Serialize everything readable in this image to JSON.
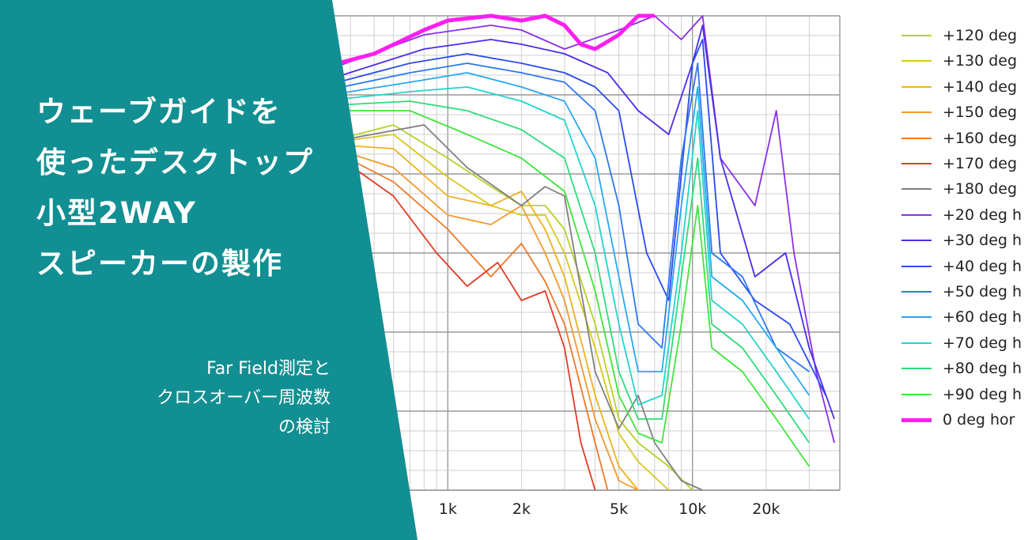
{
  "banner": {
    "bg_color": "#128f92",
    "title_lines": [
      "ウェーブガイドを",
      "使ったデスクトップ",
      "小型2WAY",
      "スピーカーの製作"
    ],
    "subtitle_lines": [
      "Far Field測定と",
      "クロスオーバー周波数",
      "の検討"
    ]
  },
  "chart_data": {
    "type": "line",
    "xscale": "log",
    "xlim": [
      250,
      40000
    ],
    "ylim": [
      0,
      1
    ],
    "x_tick_labels": [
      {
        "label": "1k",
        "value": 1000
      },
      {
        "label": "2k",
        "value": 2000
      },
      {
        "label": "5k",
        "value": 5000
      },
      {
        "label": "10k",
        "value": 10000
      },
      {
        "label": "20k",
        "value": 20000
      }
    ],
    "grid": true,
    "legend_position": "right",
    "series": [
      {
        "name": "+120 deg",
        "color": "#b6d22a",
        "values": [
          [
            300,
            0.73
          ],
          [
            600,
            0.77
          ],
          [
            1000,
            0.7
          ],
          [
            1500,
            0.64
          ],
          [
            2000,
            0.6
          ],
          [
            2500,
            0.6
          ],
          [
            3000,
            0.55
          ],
          [
            4000,
            0.35
          ],
          [
            5000,
            0.15
          ],
          [
            6000,
            0.1
          ],
          [
            8000,
            0.05
          ],
          [
            10000,
            0.0
          ]
        ]
      },
      {
        "name": "+130 deg",
        "color": "#d9c81c",
        "values": [
          [
            300,
            0.73
          ],
          [
            600,
            0.75
          ],
          [
            1000,
            0.66
          ],
          [
            1500,
            0.6
          ],
          [
            2000,
            0.58
          ],
          [
            2500,
            0.58
          ],
          [
            3000,
            0.5
          ],
          [
            4000,
            0.3
          ],
          [
            5000,
            0.12
          ],
          [
            6000,
            0.06
          ],
          [
            8000,
            0.0
          ]
        ]
      },
      {
        "name": "+140 deg",
        "color": "#efb21e",
        "values": [
          [
            300,
            0.73
          ],
          [
            600,
            0.72
          ],
          [
            1000,
            0.62
          ],
          [
            1500,
            0.6
          ],
          [
            2000,
            0.63
          ],
          [
            2500,
            0.55
          ],
          [
            3000,
            0.45
          ],
          [
            4000,
            0.2
          ],
          [
            5000,
            0.05
          ],
          [
            6000,
            0.0
          ]
        ]
      },
      {
        "name": "+150 deg",
        "color": "#f29a2e",
        "values": [
          [
            300,
            0.73
          ],
          [
            600,
            0.68
          ],
          [
            1000,
            0.58
          ],
          [
            1500,
            0.56
          ],
          [
            2000,
            0.6
          ],
          [
            2500,
            0.5
          ],
          [
            3000,
            0.4
          ],
          [
            4000,
            0.15
          ],
          [
            5000,
            0.02
          ],
          [
            6000,
            0.0
          ]
        ]
      },
      {
        "name": "+160 deg",
        "color": "#ee7a2a",
        "values": [
          [
            300,
            0.73
          ],
          [
            600,
            0.65
          ],
          [
            1000,
            0.55
          ],
          [
            1500,
            0.45
          ],
          [
            2000,
            0.52
          ],
          [
            2500,
            0.44
          ],
          [
            3000,
            0.35
          ],
          [
            4000,
            0.1
          ],
          [
            4500,
            0.0
          ]
        ]
      },
      {
        "name": "+170 deg",
        "color": "#e23b26",
        "values": [
          [
            300,
            0.73
          ],
          [
            600,
            0.62
          ],
          [
            900,
            0.5
          ],
          [
            1200,
            0.43
          ],
          [
            1600,
            0.48
          ],
          [
            2000,
            0.4
          ],
          [
            2500,
            0.42
          ],
          [
            3000,
            0.3
          ],
          [
            3500,
            0.1
          ],
          [
            4000,
            0.0
          ]
        ]
      },
      {
        "name": "+180 deg",
        "color": "#808080",
        "values": [
          [
            300,
            0.73
          ],
          [
            800,
            0.77
          ],
          [
            1200,
            0.68
          ],
          [
            2000,
            0.6
          ],
          [
            2500,
            0.64
          ],
          [
            3000,
            0.62
          ],
          [
            4000,
            0.25
          ],
          [
            5000,
            0.13
          ],
          [
            6000,
            0.2
          ],
          [
            7000,
            0.1
          ],
          [
            9000,
            0.02
          ],
          [
            11000,
            0.0
          ]
        ]
      },
      {
        "name": "+20 deg h",
        "color": "#8a30e8",
        "values": [
          [
            300,
            0.88
          ],
          [
            800,
            0.96
          ],
          [
            1500,
            0.98
          ],
          [
            2000,
            0.97
          ],
          [
            3000,
            0.93
          ],
          [
            5000,
            0.97
          ],
          [
            7000,
            1.0
          ],
          [
            9000,
            0.95
          ],
          [
            11000,
            1.0
          ],
          [
            13000,
            0.7
          ],
          [
            18000,
            0.6
          ],
          [
            22000,
            0.8
          ],
          [
            26000,
            0.5
          ],
          [
            32000,
            0.25
          ],
          [
            38000,
            0.1
          ]
        ]
      },
      {
        "name": "+30 deg h",
        "color": "#4a2ee8",
        "values": [
          [
            300,
            0.86
          ],
          [
            800,
            0.93
          ],
          [
            1500,
            0.95
          ],
          [
            2000,
            0.94
          ],
          [
            3000,
            0.92
          ],
          [
            4500,
            0.88
          ],
          [
            6000,
            0.8
          ],
          [
            8000,
            0.75
          ],
          [
            10000,
            0.9
          ],
          [
            11000,
            0.98
          ],
          [
            13000,
            0.7
          ],
          [
            18000,
            0.45
          ],
          [
            24000,
            0.5
          ],
          [
            30000,
            0.3
          ],
          [
            38000,
            0.15
          ]
        ]
      },
      {
        "name": "+40 deg h",
        "color": "#2a4af0",
        "values": [
          [
            300,
            0.85
          ],
          [
            700,
            0.9
          ],
          [
            1200,
            0.92
          ],
          [
            2000,
            0.9
          ],
          [
            3000,
            0.88
          ],
          [
            4000,
            0.85
          ],
          [
            5000,
            0.8
          ],
          [
            6500,
            0.5
          ],
          [
            8000,
            0.4
          ],
          [
            10000,
            0.9
          ],
          [
            11000,
            0.95
          ],
          [
            13000,
            0.5
          ],
          [
            18000,
            0.4
          ],
          [
            25000,
            0.35
          ],
          [
            35000,
            0.2
          ]
        ]
      },
      {
        "name": "+50 deg h",
        "color": "#2e78f0",
        "values": [
          [
            300,
            0.84
          ],
          [
            700,
            0.88
          ],
          [
            1200,
            0.9
          ],
          [
            2000,
            0.88
          ],
          [
            3000,
            0.86
          ],
          [
            4000,
            0.8
          ],
          [
            5000,
            0.6
          ],
          [
            6000,
            0.35
          ],
          [
            7500,
            0.3
          ],
          [
            9000,
            0.7
          ],
          [
            10500,
            0.9
          ],
          [
            12000,
            0.5
          ],
          [
            16000,
            0.45
          ],
          [
            22000,
            0.3
          ],
          [
            30000,
            0.25
          ]
        ]
      },
      {
        "name": "+60 deg h",
        "color": "#26a8f0",
        "values": [
          [
            300,
            0.83
          ],
          [
            700,
            0.86
          ],
          [
            1200,
            0.88
          ],
          [
            2000,
            0.85
          ],
          [
            3000,
            0.82
          ],
          [
            4000,
            0.7
          ],
          [
            5000,
            0.45
          ],
          [
            6000,
            0.25
          ],
          [
            7500,
            0.25
          ],
          [
            9000,
            0.6
          ],
          [
            10500,
            0.85
          ],
          [
            12000,
            0.45
          ],
          [
            16000,
            0.4
          ],
          [
            22000,
            0.3
          ],
          [
            30000,
            0.2
          ]
        ]
      },
      {
        "name": "+70 deg h",
        "color": "#22d4cc",
        "values": [
          [
            300,
            0.82
          ],
          [
            700,
            0.84
          ],
          [
            1200,
            0.85
          ],
          [
            2000,
            0.82
          ],
          [
            3000,
            0.78
          ],
          [
            4000,
            0.6
          ],
          [
            5000,
            0.35
          ],
          [
            6000,
            0.18
          ],
          [
            7500,
            0.2
          ],
          [
            9000,
            0.5
          ],
          [
            10500,
            0.8
          ],
          [
            12000,
            0.4
          ],
          [
            16000,
            0.35
          ],
          [
            22000,
            0.25
          ],
          [
            30000,
            0.15
          ]
        ]
      },
      {
        "name": "+80 deg h",
        "color": "#2edc7a",
        "values": [
          [
            300,
            0.81
          ],
          [
            700,
            0.82
          ],
          [
            1200,
            0.8
          ],
          [
            2000,
            0.76
          ],
          [
            3000,
            0.7
          ],
          [
            4000,
            0.5
          ],
          [
            5000,
            0.25
          ],
          [
            6000,
            0.15
          ],
          [
            7500,
            0.15
          ],
          [
            9000,
            0.45
          ],
          [
            10500,
            0.7
          ],
          [
            12000,
            0.35
          ],
          [
            16000,
            0.3
          ],
          [
            22000,
            0.2
          ],
          [
            30000,
            0.1
          ]
        ]
      },
      {
        "name": "+90 deg h",
        "color": "#40e63a",
        "values": [
          [
            300,
            0.8
          ],
          [
            700,
            0.8
          ],
          [
            1200,
            0.75
          ],
          [
            2000,
            0.7
          ],
          [
            3000,
            0.63
          ],
          [
            4000,
            0.42
          ],
          [
            5000,
            0.2
          ],
          [
            6000,
            0.12
          ],
          [
            7500,
            0.1
          ],
          [
            9000,
            0.35
          ],
          [
            10500,
            0.6
          ],
          [
            12000,
            0.3
          ],
          [
            16000,
            0.25
          ],
          [
            22000,
            0.15
          ],
          [
            30000,
            0.05
          ]
        ]
      },
      {
        "name": "0 deg hor",
        "color": "#ff1ef0",
        "values": [
          [
            300,
            0.89
          ],
          [
            500,
            0.92
          ],
          [
            800,
            0.97
          ],
          [
            1000,
            0.99
          ],
          [
            1500,
            1.0
          ],
          [
            2000,
            0.99
          ],
          [
            2500,
            1.0
          ],
          [
            3000,
            0.98
          ],
          [
            3500,
            0.94
          ],
          [
            4000,
            0.93
          ],
          [
            5000,
            0.96
          ],
          [
            6000,
            1.0
          ],
          [
            7000,
            1.0
          ]
        ]
      }
    ]
  }
}
